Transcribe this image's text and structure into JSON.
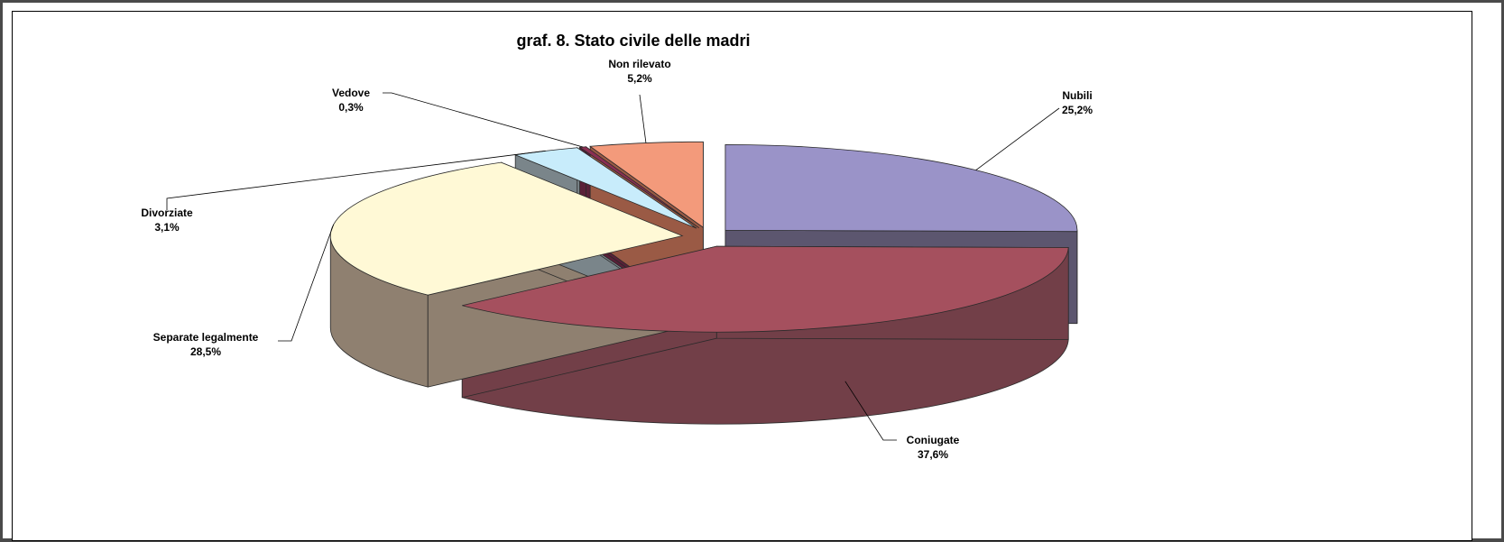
{
  "chart_data": {
    "type": "pie",
    "title": "graf. 8. Stato civile delle madri",
    "slices": [
      {
        "label": "Nubili",
        "value_text": "25,2%",
        "value": 25.2,
        "top": "#9a93c8",
        "side": "#5c566f"
      },
      {
        "label": "Coniugate",
        "value_text": "37,6%",
        "value": 37.6,
        "top": "#a5505e",
        "side": "#723f48"
      },
      {
        "label": "Separate legalmente",
        "value_text": "28,5%",
        "value": 28.5,
        "top": "#fff9d6",
        "side": "#8f8070"
      },
      {
        "label": "Divorziate",
        "value_text": "3,1%",
        "value": 3.1,
        "top": "#c8ecfb",
        "side": "#7a858a"
      },
      {
        "label": "Vedove",
        "value_text": "0,3%",
        "value": 0.3,
        "top": "#8a2f52",
        "side": "#5a2038"
      },
      {
        "label": "Non rilevato",
        "value_text": "5,2%",
        "value": 5.2,
        "top": "#f39a7b",
        "side": "#9a5a45"
      }
    ],
    "legend": "none",
    "style": "3d-exploded"
  }
}
